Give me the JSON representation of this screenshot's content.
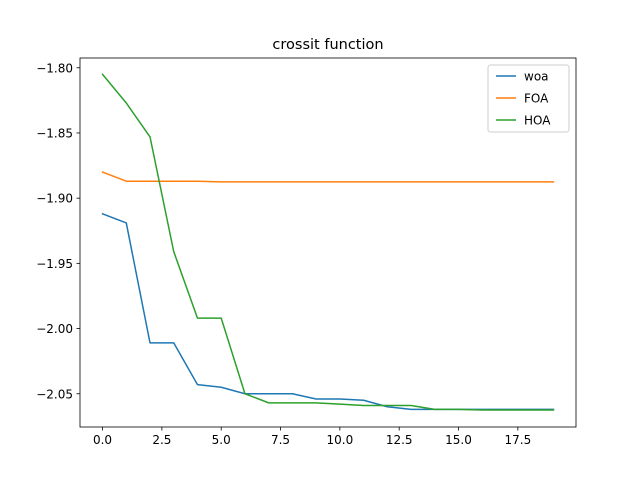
{
  "chart_data": {
    "type": "line",
    "title": "crossit function",
    "xlabel": "",
    "ylabel": "",
    "xlim": [
      -0.95,
      19.95
    ],
    "ylim": [
      -2.0755,
      -1.7925
    ],
    "xticks": [
      0.0,
      2.5,
      5.0,
      7.5,
      10.0,
      12.5,
      15.0,
      17.5
    ],
    "xtick_labels": [
      "0.0",
      "2.5",
      "5.0",
      "7.5",
      "10.0",
      "12.5",
      "15.0",
      "17.5"
    ],
    "yticks": [
      -1.8,
      -1.85,
      -1.9,
      -1.95,
      -2.0,
      -2.05
    ],
    "ytick_labels": [
      "−1.80",
      "−1.85",
      "−1.90",
      "−1.95",
      "−2.00",
      "−2.05"
    ],
    "grid": false,
    "legend_position": "top-right",
    "x": [
      0,
      1,
      2,
      3,
      4,
      5,
      6,
      7,
      8,
      9,
      10,
      11,
      12,
      13,
      14,
      15,
      16,
      17,
      18,
      19
    ],
    "series": [
      {
        "name": "woa",
        "color": "#1f77b4",
        "values": [
          -1.912,
          -1.919,
          -2.011,
          -2.011,
          -2.043,
          -2.045,
          -2.05,
          -2.05,
          -2.05,
          -2.054,
          -2.054,
          -2.055,
          -2.06,
          -2.062,
          -2.062,
          -2.062,
          -2.062,
          -2.062,
          -2.062,
          -2.062
        ]
      },
      {
        "name": "FOA",
        "color": "#ff7f0e",
        "values": [
          -1.88,
          -1.887,
          -1.887,
          -1.887,
          -1.887,
          -1.8875,
          -1.8875,
          -1.8875,
          -1.8875,
          -1.8875,
          -1.8875,
          -1.8875,
          -1.8875,
          -1.8875,
          -1.8875,
          -1.8875,
          -1.8875,
          -1.8875,
          -1.8875,
          -1.8875
        ]
      },
      {
        "name": "HOA",
        "color": "#2ca02c",
        "values": [
          -1.805,
          -1.827,
          -1.853,
          -1.941,
          -1.992,
          -1.992,
          -2.05,
          -2.057,
          -2.057,
          -2.057,
          -2.058,
          -2.059,
          -2.059,
          -2.059,
          -2.062,
          -2.062,
          -2.0625,
          -2.0625,
          -2.0625,
          -2.0625
        ]
      }
    ]
  }
}
